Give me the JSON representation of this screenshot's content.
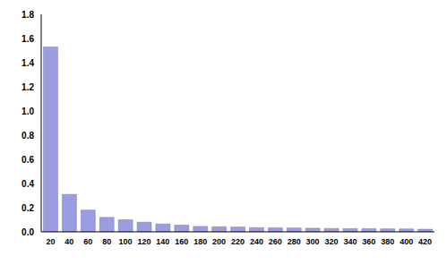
{
  "chart_data": {
    "type": "bar",
    "categories": [
      "20",
      "40",
      "60",
      "80",
      "100",
      "120",
      "140",
      "160",
      "180",
      "200",
      "220",
      "240",
      "260",
      "280",
      "300",
      "320",
      "340",
      "360",
      "380",
      "400",
      "420"
    ],
    "values": [
      1.53,
      0.31,
      0.18,
      0.12,
      0.1,
      0.08,
      0.065,
      0.055,
      0.045,
      0.042,
      0.04,
      0.035,
      0.033,
      0.032,
      0.03,
      0.028,
      0.027,
      0.026,
      0.025,
      0.024,
      0.022
    ],
    "color": "#9c9ce0",
    "ylim": [
      0,
      1.8
    ],
    "yticks": [
      {
        "value": 0,
        "label": "0.0"
      },
      0.2,
      0.4,
      0.6,
      0.8,
      {
        "value": 1,
        "label": "1.0"
      },
      1.2,
      1.4,
      1.6,
      1.8
    ],
    "grid": false
  }
}
